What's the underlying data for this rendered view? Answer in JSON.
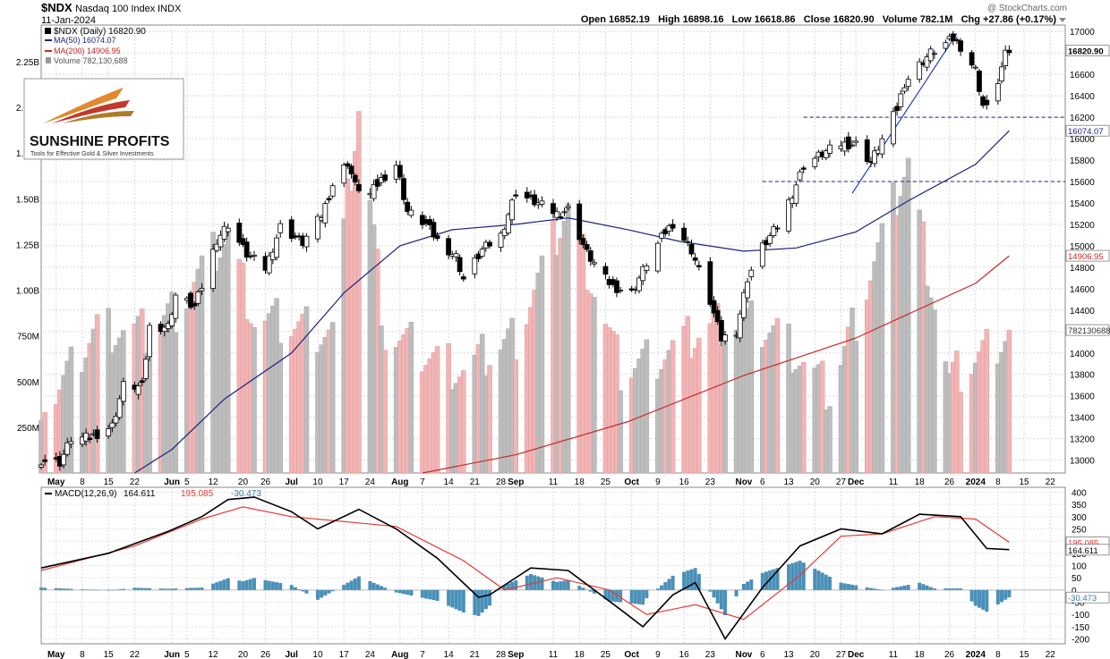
{
  "header": {
    "symbol": "$NDX",
    "name": "Nasdaq 100 Index",
    "exchange": "INDX",
    "date": "11-Jan-2024",
    "watermark": "@ StockCharts.com",
    "quote_line": "Open 16852.19   High 16898.16   Low 16618.86   Close 16820.90   Volume 782.1M   Chg +27.86 (+0.17%)"
  },
  "legend": {
    "main": "$NDX (Daily) 16820.90",
    "ma50": "MA(50) 16074.07",
    "ma200": "MA(200) 14906.95",
    "volume": "Volume 782,130,688"
  },
  "logo": {
    "brand": "SUNSHINE PROFITS",
    "tagline": "Tools for Effective Gold & Silver Investments"
  },
  "colors": {
    "up_candle": "#ffffff",
    "down_candle": "#000000",
    "ma50": "#1a237e",
    "ma200": "#c62828",
    "vol_up": "#bdbdbd",
    "vol_down": "#f2b5b5",
    "macd_line": "#000000",
    "signal_line": "#e53935",
    "histogram": "#4a90b8",
    "support_lines": "#1a237e"
  },
  "price_axis": {
    "ticks": [
      13000,
      13200,
      13400,
      13600,
      13800,
      14000,
      14200,
      14400,
      14600,
      14800,
      15000,
      15200,
      15400,
      15600,
      15800,
      16000,
      16200,
      16400,
      16600,
      16800,
      17000
    ],
    "tags": {
      "close": "16820.90",
      "ma50": "16074.07",
      "ma200": "14906.95",
      "volume": "782130688"
    }
  },
  "volume_axis": {
    "ticks": [
      "250M",
      "500M",
      "750M",
      "1.00B",
      "1.25B",
      "1.50B",
      "1.75B",
      "2.00B",
      "2.25B"
    ]
  },
  "macd_axis": {
    "ticks": [
      400,
      350,
      300,
      250,
      200,
      150,
      100,
      50,
      0,
      -50,
      -100,
      -150,
      -200
    ],
    "tags": {
      "signal": "195.085",
      "macd": "164.611",
      "hist": "-30.473"
    }
  },
  "macd_legend": {
    "label": "MACD(12,26,9)",
    "macd": "164.611",
    "signal": "195.085",
    "hist": "-30.473"
  },
  "x_axis": [
    {
      "label": "May",
      "bold": true,
      "date": "2023-05-01"
    },
    {
      "label": "8",
      "date": "2023-05-08"
    },
    {
      "label": "15",
      "date": "2023-05-15"
    },
    {
      "label": "22",
      "date": "2023-05-22"
    },
    {
      "label": "Jun",
      "bold": true,
      "date": "2023-06-01"
    },
    {
      "label": "5",
      "date": "2023-06-05"
    },
    {
      "label": "12",
      "date": "2023-06-12"
    },
    {
      "label": "20",
      "date": "2023-06-20"
    },
    {
      "label": "26",
      "date": "2023-06-26"
    },
    {
      "label": "Jul",
      "bold": true,
      "date": "2023-07-03"
    },
    {
      "label": "10",
      "date": "2023-07-10"
    },
    {
      "label": "17",
      "date": "2023-07-17"
    },
    {
      "label": "24",
      "date": "2023-07-24"
    },
    {
      "label": "Aug",
      "bold": true,
      "date": "2023-08-01"
    },
    {
      "label": "7",
      "date": "2023-08-07"
    },
    {
      "label": "14",
      "date": "2023-08-14"
    },
    {
      "label": "21",
      "date": "2023-08-21"
    },
    {
      "label": "28",
      "date": "2023-08-28"
    },
    {
      "label": "Sep",
      "bold": true,
      "date": "2023-09-01"
    },
    {
      "label": "11",
      "date": "2023-09-11"
    },
    {
      "label": "18",
      "date": "2023-09-18"
    },
    {
      "label": "25",
      "date": "2023-09-25"
    },
    {
      "label": "Oct",
      "bold": true,
      "date": "2023-10-02"
    },
    {
      "label": "9",
      "date": "2023-10-09"
    },
    {
      "label": "16",
      "date": "2023-10-16"
    },
    {
      "label": "23",
      "date": "2023-10-23"
    },
    {
      "label": "Nov",
      "bold": true,
      "date": "2023-11-01"
    },
    {
      "label": "6",
      "date": "2023-11-06"
    },
    {
      "label": "13",
      "date": "2023-11-13"
    },
    {
      "label": "20",
      "date": "2023-11-20"
    },
    {
      "label": "27",
      "date": "2023-11-27"
    },
    {
      "label": "Dec",
      "bold": true,
      "date": "2023-12-01"
    },
    {
      "label": "11",
      "date": "2023-12-11"
    },
    {
      "label": "18",
      "date": "2023-12-18"
    },
    {
      "label": "26",
      "date": "2023-12-26"
    },
    {
      "label": "2024",
      "bold": true,
      "date": "2024-01-02"
    },
    {
      "label": "8",
      "date": "2024-01-08"
    },
    {
      "label": "15",
      "date": "2024-01-15"
    },
    {
      "label": "22",
      "date": "2024-01-22"
    }
  ],
  "chart_data": {
    "type": "candlestick",
    "x_range": [
      "2023-04-27",
      "2024-01-26"
    ],
    "price_range": [
      12880,
      17060
    ],
    "volume_range_millions": [
      0,
      2450
    ],
    "macd_range": [
      -220,
      420
    ],
    "support_lines": [
      {
        "value": 16200,
        "from": "2023-11-17",
        "to": "2024-01-26"
      },
      {
        "value": 15600,
        "from": "2023-11-06",
        "to": "2024-01-26"
      }
    ],
    "trendline": {
      "from": {
        "date": "2023-11-30",
        "value": 15490
      },
      "to": {
        "date": "2023-12-28",
        "value": 16980
      }
    },
    "anchors": {
      "close": [
        [
          "2023-04-27",
          13000
        ],
        [
          "2023-05-02",
          12980
        ],
        [
          "2023-05-05",
          13200
        ],
        [
          "2023-05-10",
          13210
        ],
        [
          "2023-05-16",
          13320
        ],
        [
          "2023-05-19",
          13700
        ],
        [
          "2023-05-24",
          13680
        ],
        [
          "2023-05-26",
          14240
        ],
        [
          "2023-05-31",
          14250
        ],
        [
          "2023-06-02",
          14540
        ],
        [
          "2023-06-07",
          14430
        ],
        [
          "2023-06-09",
          14620
        ],
        [
          "2023-06-13",
          15060
        ],
        [
          "2023-06-16",
          15200
        ],
        [
          "2023-06-21",
          14920
        ],
        [
          "2023-06-26",
          14790
        ],
        [
          "2023-06-30",
          15180
        ],
        [
          "2023-07-06",
          15030
        ],
        [
          "2023-07-11",
          15280
        ],
        [
          "2023-07-14",
          15570
        ],
        [
          "2023-07-18",
          15780
        ],
        [
          "2023-07-20",
          15560
        ],
        [
          "2023-07-24",
          15480
        ],
        [
          "2023-07-27",
          15620
        ],
        [
          "2023-07-31",
          15760
        ],
        [
          "2023-08-03",
          15320
        ],
        [
          "2023-08-08",
          15200
        ],
        [
          "2023-08-11",
          15050
        ],
        [
          "2023-08-16",
          14900
        ],
        [
          "2023-08-18",
          14690
        ],
        [
          "2023-08-23",
          14960
        ],
        [
          "2023-08-28",
          15100
        ],
        [
          "2023-09-01",
          15500
        ],
        [
          "2023-09-06",
          15410
        ],
        [
          "2023-09-12",
          15300
        ],
        [
          "2023-09-15",
          15340
        ],
        [
          "2023-09-20",
          14930
        ],
        [
          "2023-09-25",
          14690
        ],
        [
          "2023-09-27",
          14620
        ],
        [
          "2023-10-02",
          14560
        ],
        [
          "2023-10-06",
          14840
        ],
        [
          "2023-10-11",
          15130
        ],
        [
          "2023-10-13",
          15210
        ],
        [
          "2023-10-18",
          14960
        ],
        [
          "2023-10-23",
          14480
        ],
        [
          "2023-10-26",
          14130
        ],
        [
          "2023-10-30",
          14210
        ],
        [
          "2023-11-02",
          14700
        ],
        [
          "2023-11-06",
          14990
        ],
        [
          "2023-11-10",
          15180
        ],
        [
          "2023-11-14",
          15490
        ],
        [
          "2023-11-17",
          15750
        ],
        [
          "2023-11-22",
          15860
        ],
        [
          "2023-11-27",
          15950
        ],
        [
          "2023-12-01",
          15950
        ],
        [
          "2023-12-05",
          15780
        ],
        [
          "2023-12-08",
          15990
        ],
        [
          "2023-12-12",
          16280
        ],
        [
          "2023-12-14",
          16520
        ],
        [
          "2023-12-18",
          16690
        ],
        [
          "2023-12-21",
          16800
        ],
        [
          "2023-12-27",
          16930
        ],
        [
          "2023-12-29",
          16860
        ],
        [
          "2024-01-02",
          16640
        ],
        [
          "2024-01-04",
          16310
        ],
        [
          "2024-01-05",
          16280
        ],
        [
          "2024-01-08",
          16540
        ],
        [
          "2024-01-09",
          16660
        ],
        [
          "2024-01-10",
          16780
        ],
        [
          "2024-01-11",
          16820
        ]
      ],
      "ma50": [
        [
          "2023-05-22",
          12880
        ],
        [
          "2023-06-01",
          13100
        ],
        [
          "2023-06-15",
          13570
        ],
        [
          "2023-07-03",
          14000
        ],
        [
          "2023-07-17",
          14560
        ],
        [
          "2023-08-01",
          15000
        ],
        [
          "2023-08-15",
          15150
        ],
        [
          "2023-09-01",
          15200
        ],
        [
          "2023-09-15",
          15260
        ],
        [
          "2023-10-01",
          15150
        ],
        [
          "2023-10-15",
          15040
        ],
        [
          "2023-11-01",
          14950
        ],
        [
          "2023-11-15",
          14980
        ],
        [
          "2023-12-01",
          15130
        ],
        [
          "2023-12-15",
          15420
        ],
        [
          "2024-01-02",
          15760
        ],
        [
          "2024-01-11",
          16074
        ]
      ],
      "ma200": [
        [
          "2023-08-07",
          12880
        ],
        [
          "2023-09-01",
          13050
        ],
        [
          "2023-10-01",
          13360
        ],
        [
          "2023-11-01",
          13790
        ],
        [
          "2023-12-01",
          14140
        ],
        [
          "2024-01-02",
          14650
        ],
        [
          "2024-01-11",
          14907
        ]
      ],
      "volume_millions": [
        [
          "2023-05-01",
          420
        ],
        [
          "2023-05-12",
          800
        ],
        [
          "2023-05-26",
          760
        ],
        [
          "2023-06-02",
          900
        ],
        [
          "2023-06-16",
          1300
        ],
        [
          "2023-06-23",
          840
        ],
        [
          "2023-07-14",
          780
        ],
        [
          "2023-07-21",
          2000
        ],
        [
          "2023-07-28",
          760
        ],
        [
          "2023-08-18",
          560
        ],
        [
          "2023-09-01",
          750
        ],
        [
          "2023-09-15",
          1450
        ],
        [
          "2023-09-29",
          560
        ],
        [
          "2023-10-13",
          680
        ],
        [
          "2023-10-27",
          840
        ],
        [
          "2023-11-10",
          780
        ],
        [
          "2023-11-24",
          430
        ],
        [
          "2023-12-15",
          1700
        ],
        [
          "2023-12-26",
          500
        ],
        [
          "2024-01-11",
          782
        ]
      ],
      "macd": [
        [
          "2023-04-27",
          90
        ],
        [
          "2023-05-15",
          150
        ],
        [
          "2023-05-31",
          240
        ],
        [
          "2023-06-09",
          300
        ],
        [
          "2023-06-16",
          370
        ],
        [
          "2023-06-23",
          380
        ],
        [
          "2023-07-03",
          320
        ],
        [
          "2023-07-10",
          250
        ],
        [
          "2023-07-21",
          330
        ],
        [
          "2023-07-31",
          250
        ],
        [
          "2023-08-11",
          130
        ],
        [
          "2023-08-22",
          -30
        ],
        [
          "2023-08-25",
          -20
        ],
        [
          "2023-09-05",
          90
        ],
        [
          "2023-09-15",
          80
        ],
        [
          "2023-09-29",
          -80
        ],
        [
          "2023-10-05",
          -150
        ],
        [
          "2023-10-13",
          -20
        ],
        [
          "2023-10-19",
          30
        ],
        [
          "2023-10-27",
          -200
        ],
        [
          "2023-11-06",
          10
        ],
        [
          "2023-11-16",
          180
        ],
        [
          "2023-11-27",
          250
        ],
        [
          "2023-12-08",
          230
        ],
        [
          "2023-12-18",
          310
        ],
        [
          "2023-12-29",
          300
        ],
        [
          "2024-01-05",
          170
        ],
        [
          "2024-01-11",
          165
        ]
      ],
      "signal": [
        [
          "2023-04-27",
          80
        ],
        [
          "2023-05-22",
          180
        ],
        [
          "2023-06-09",
          290
        ],
        [
          "2023-06-20",
          340
        ],
        [
          "2023-07-03",
          300
        ],
        [
          "2023-07-17",
          280
        ],
        [
          "2023-07-31",
          260
        ],
        [
          "2023-08-18",
          120
        ],
        [
          "2023-08-29",
          0
        ],
        [
          "2023-09-12",
          50
        ],
        [
          "2023-09-26",
          0
        ],
        [
          "2023-10-06",
          -100
        ],
        [
          "2023-10-19",
          -60
        ],
        [
          "2023-11-01",
          -120
        ],
        [
          "2023-11-16",
          60
        ],
        [
          "2023-11-27",
          220
        ],
        [
          "2023-12-08",
          230
        ],
        [
          "2023-12-22",
          300
        ],
        [
          "2024-01-02",
          290
        ],
        [
          "2024-01-11",
          195
        ]
      ]
    }
  }
}
